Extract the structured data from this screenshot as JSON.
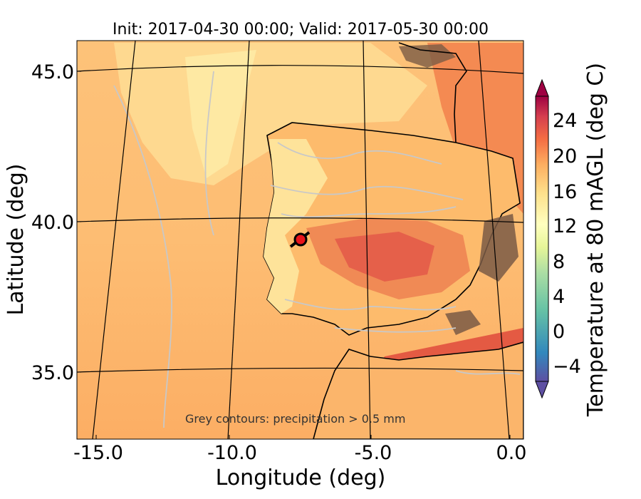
{
  "map": {
    "title": "Init: 2017-04-30 00:00; Valid: 2017-05-30 00:00",
    "xlabel": "Longitude (deg)",
    "ylabel": "Latitude (deg)",
    "x_ticks": [
      "-15.0",
      "-10.0",
      "-5.0",
      "0.0"
    ],
    "y_ticks": [
      "45.0",
      "40.0",
      "35.0"
    ],
    "annotation": "Grey contours: precipitation > 0.5 mm",
    "marker_color": "#e8141c",
    "land_outline_color": "#000000",
    "precip_contour_color": "#c8c8c8"
  },
  "colorbar": {
    "label": "Temperature at 80 mAGL (deg C)",
    "ticks": [
      "24",
      "20",
      "16",
      "12",
      "8",
      "4",
      "0",
      "−4"
    ],
    "colors": [
      "#5e4fa2",
      "#3d68ae",
      "#3288bd",
      "#4ea5b0",
      "#66c2a5",
      "#8acfa4",
      "#abdda4",
      "#c8e8a0",
      "#e6f598",
      "#f4fab0",
      "#ffffbf",
      "#fee99a",
      "#fee08b",
      "#fdc676",
      "#fdae61",
      "#f99355",
      "#f46d43",
      "#e45545",
      "#d53e4f",
      "#be2448",
      "#9e0142"
    ]
  }
}
